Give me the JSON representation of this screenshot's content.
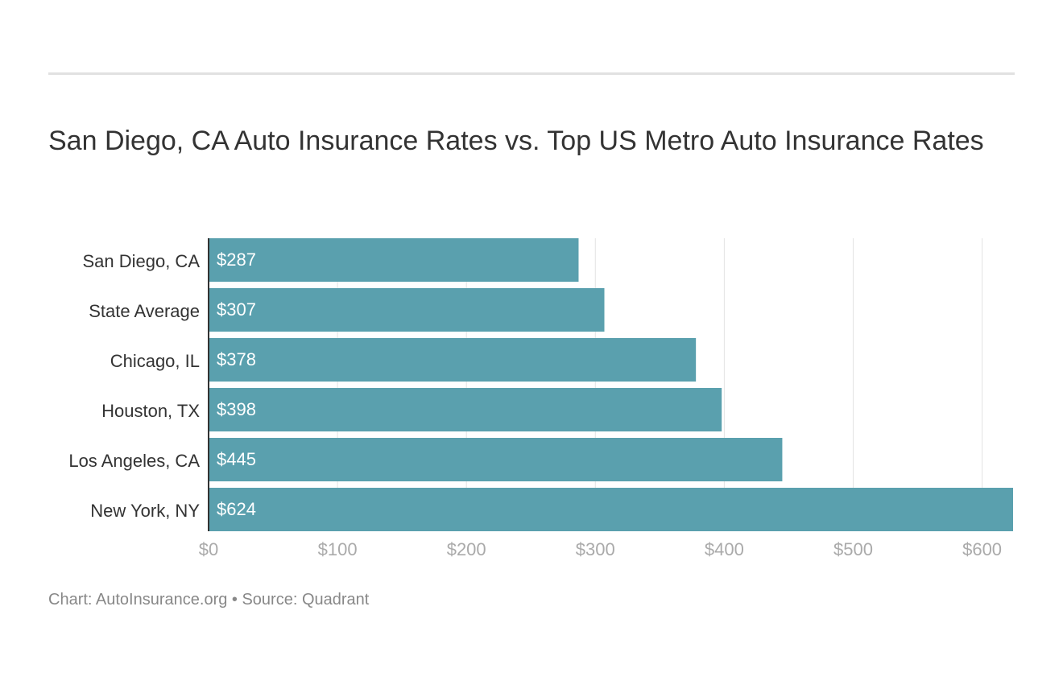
{
  "chart_data": {
    "type": "bar",
    "orientation": "horizontal",
    "title": "San Diego, CA Auto Insurance Rates vs. Top US Metro Auto Insurance Rates",
    "categories": [
      "San Diego, CA",
      "State Average",
      "Chicago, IL",
      "Houston, TX",
      "Los Angeles, CA",
      "New York, NY"
    ],
    "values": [
      287,
      307,
      378,
      398,
      445,
      624
    ],
    "value_labels": [
      "$287",
      "$307",
      "$378",
      "$398",
      "$445",
      "$624"
    ],
    "xlim": [
      0,
      624
    ],
    "x_ticks": [
      0,
      100,
      200,
      300,
      400,
      500,
      600
    ],
    "x_tick_labels": [
      "$0",
      "$100",
      "$200",
      "$300",
      "$400",
      "$500",
      "$600"
    ],
    "xlabel": "",
    "ylabel": "",
    "grid": true,
    "bar_color": "#5aa0ae"
  },
  "footer": {
    "text": "Chart: AutoInsurance.org • Source: Quadrant"
  }
}
